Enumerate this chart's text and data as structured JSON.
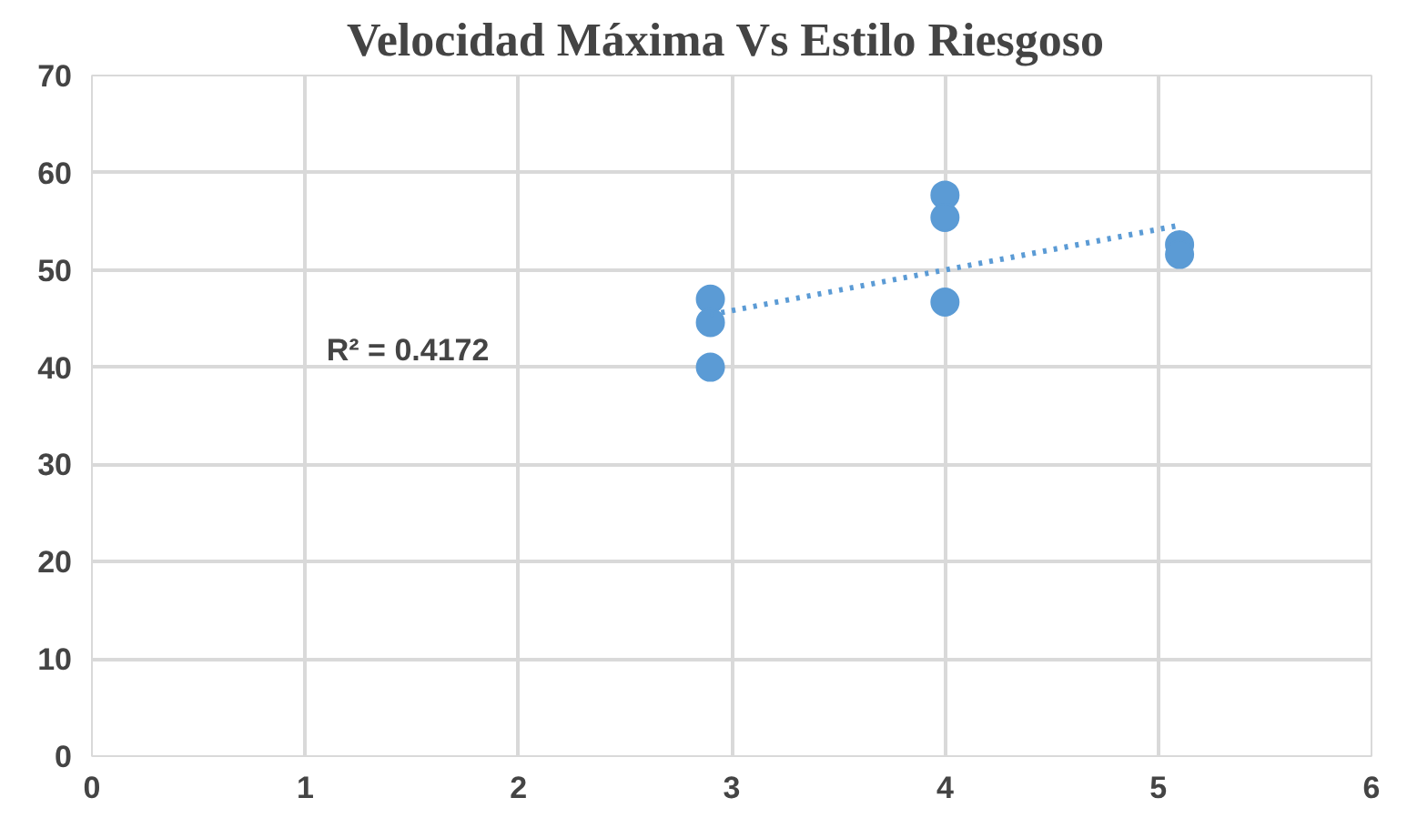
{
  "chart_data": {
    "type": "scatter",
    "title": "Velocidad Máxima Vs  Estilo Riesgoso",
    "series": [
      {
        "color": "#5b9bd5",
        "marker": "circle",
        "x": [
          2.9,
          2.9,
          2.9,
          4,
          4,
          4,
          5.1,
          5.1
        ],
        "values": [
          47,
          44.6,
          40,
          57.7,
          55.4,
          46.7,
          52.6,
          51.6
        ]
      },
      {
        "type": "line",
        "color": "#5b9bd5",
        "line_style": "dotted",
        "x": [
          2.9,
          5.1
        ],
        "values": [
          45.4,
          54.6
        ]
      }
    ],
    "annotations": [
      "R² = 0.4172"
    ],
    "xlim": [
      0,
      6
    ],
    "xticks": [
      0,
      1,
      2,
      3,
      4,
      5,
      6
    ],
    "ylim": [
      0,
      70
    ],
    "yticks": [
      0,
      10,
      20,
      30,
      40,
      50,
      60,
      70
    ],
    "grid": true
  }
}
